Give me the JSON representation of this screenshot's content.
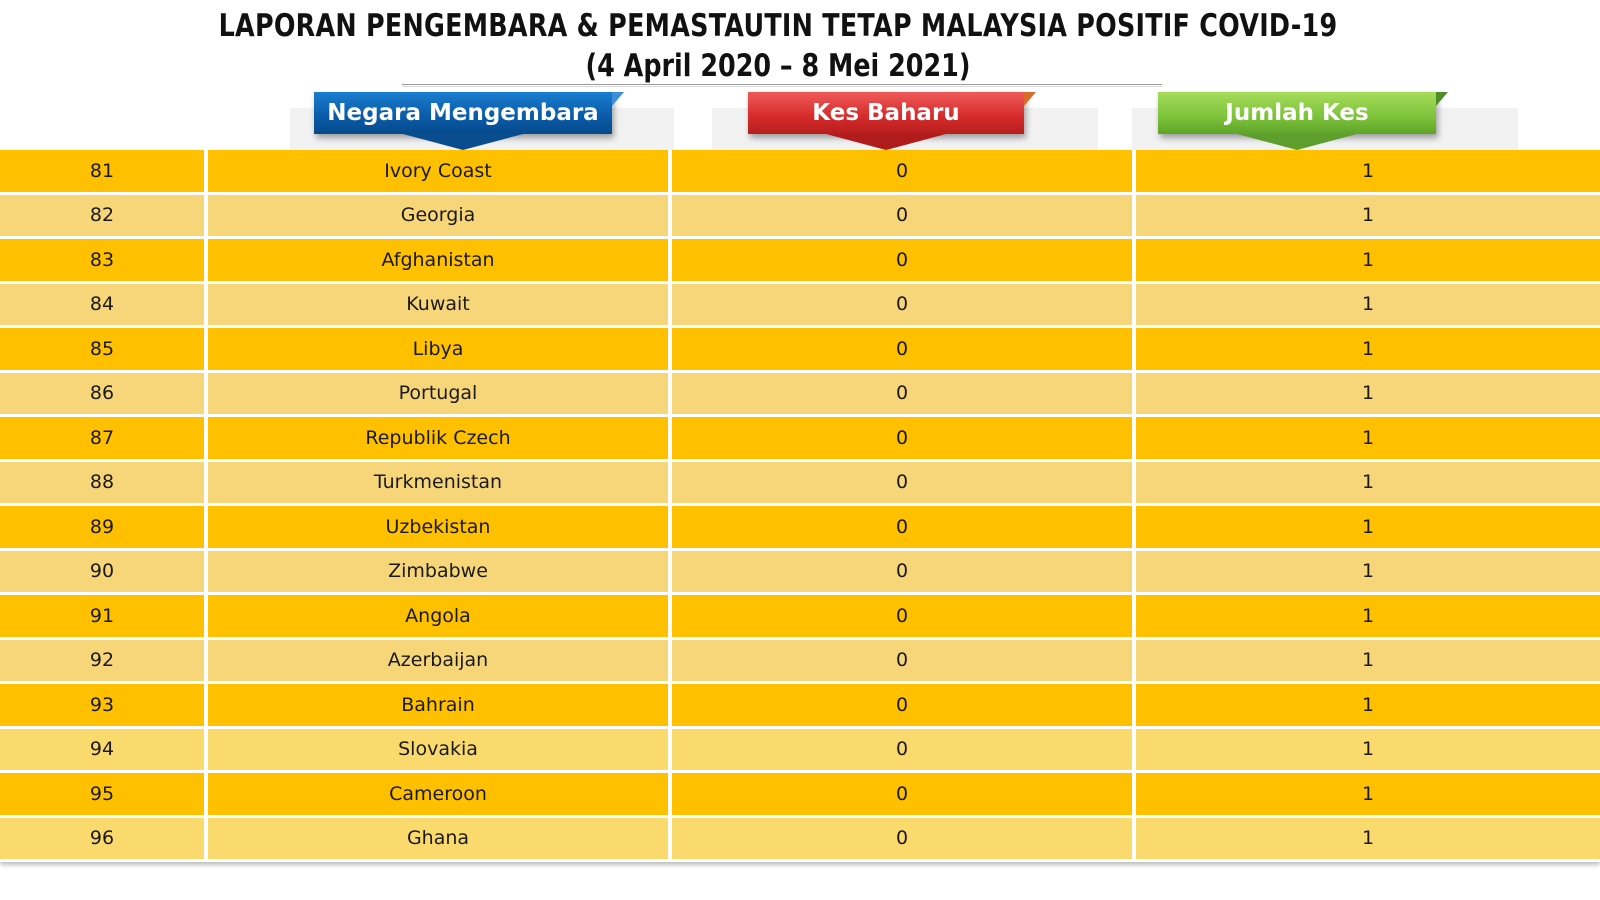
{
  "title": {
    "line1": "LAPORAN PENGEMBARA & PEMASTAUTIN TETAP MALAYSIA POSITIF COVID-19",
    "line2": "(4 April 2020 – 8 Mei 2021)"
  },
  "headers": {
    "country": "Negara Mengembara",
    "new_cases": "Kes Baharu",
    "total_cases": "Jumlah Kes"
  },
  "colors": {
    "row_primary": "#ffc000",
    "row_alternate": "#f7d67a",
    "header_blue": "#0a5aa6",
    "header_red": "#d42a2a",
    "header_green": "#7cc23a"
  },
  "rows": [
    {
      "no": "81",
      "country": "Ivory Coast",
      "new": "0",
      "total": "1"
    },
    {
      "no": "82",
      "country": "Georgia",
      "new": "0",
      "total": "1"
    },
    {
      "no": "83",
      "country": "Afghanistan",
      "new": "0",
      "total": "1"
    },
    {
      "no": "84",
      "country": "Kuwait",
      "new": "0",
      "total": "1"
    },
    {
      "no": "85",
      "country": "Libya",
      "new": "0",
      "total": "1"
    },
    {
      "no": "86",
      "country": "Portugal",
      "new": "0",
      "total": "1"
    },
    {
      "no": "87",
      "country": "Republik Czech",
      "new": "0",
      "total": "1"
    },
    {
      "no": "88",
      "country": "Turkmenistan",
      "new": "0",
      "total": "1"
    },
    {
      "no": "89",
      "country": "Uzbekistan",
      "new": "0",
      "total": "1"
    },
    {
      "no": "90",
      "country": "Zimbabwe",
      "new": "0",
      "total": "1"
    },
    {
      "no": "91",
      "country": "Angola",
      "new": "0",
      "total": "1"
    },
    {
      "no": "92",
      "country": "Azerbaijan",
      "new": "0",
      "total": "1"
    },
    {
      "no": "93",
      "country": "Bahrain",
      "new": "0",
      "total": "1"
    },
    {
      "no": "94",
      "country": "Slovakia",
      "new": "0",
      "total": "1"
    },
    {
      "no": "95",
      "country": "Cameroon",
      "new": "0",
      "total": "1"
    },
    {
      "no": "96",
      "country": "Ghana",
      "new": "0",
      "total": "1"
    }
  ]
}
